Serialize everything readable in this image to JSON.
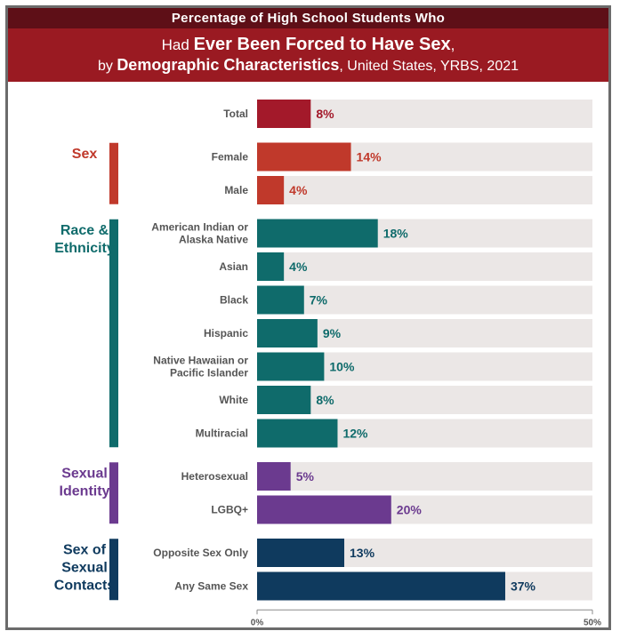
{
  "title": {
    "line1": "Percentage of High School Students Who",
    "line2_pre": "Had ",
    "line2_bold": "Ever Been Forced to Have Sex",
    "line2_post": ",",
    "line3_pre": "by ",
    "line3_bold": "Demographic Characteristics",
    "line3_post": ", United States, YRBS, 2021"
  },
  "chart_data": {
    "type": "bar",
    "orientation": "horizontal",
    "xlim": [
      0,
      50
    ],
    "xtick_labels": [
      "0%",
      "50%"
    ],
    "groups": [
      {
        "name": "",
        "color": "#a3192a",
        "categories": [
          "Total"
        ],
        "values": [
          8
        ],
        "value_labels": [
          "8%"
        ]
      },
      {
        "name": "Sex",
        "color": "#c0392b",
        "categories": [
          "Female",
          "Male"
        ],
        "values": [
          14,
          4
        ],
        "value_labels": [
          "14%",
          "4%"
        ]
      },
      {
        "name": "Race &\nEthnicity",
        "color": "#0f6b6b",
        "categories": [
          "American Indian or\nAlaska Native",
          "Asian",
          "Black",
          "Hispanic",
          "Native Hawaiian or\nPacific Islander",
          "White",
          "Multiracial"
        ],
        "values": [
          18,
          4,
          7,
          9,
          10,
          8,
          12
        ],
        "value_labels": [
          "18%",
          "4%",
          "7%",
          "9%",
          "10%",
          "8%",
          "12%"
        ]
      },
      {
        "name": "Sexual\nIdentity",
        "color": "#6b3a8f",
        "categories": [
          "Heterosexual",
          "LGBQ+"
        ],
        "values": [
          5,
          20
        ],
        "value_labels": [
          "5%",
          "20%"
        ]
      },
      {
        "name": "Sex of\nSexual\nContacts",
        "color": "#0f3a5e",
        "categories": [
          "Opposite Sex Only",
          "Any Same Sex"
        ],
        "values": [
          13,
          37
        ],
        "value_labels": [
          "13%",
          "37%"
        ]
      }
    ],
    "track_color": "#ebe7e6",
    "label_color": "#555555"
  }
}
